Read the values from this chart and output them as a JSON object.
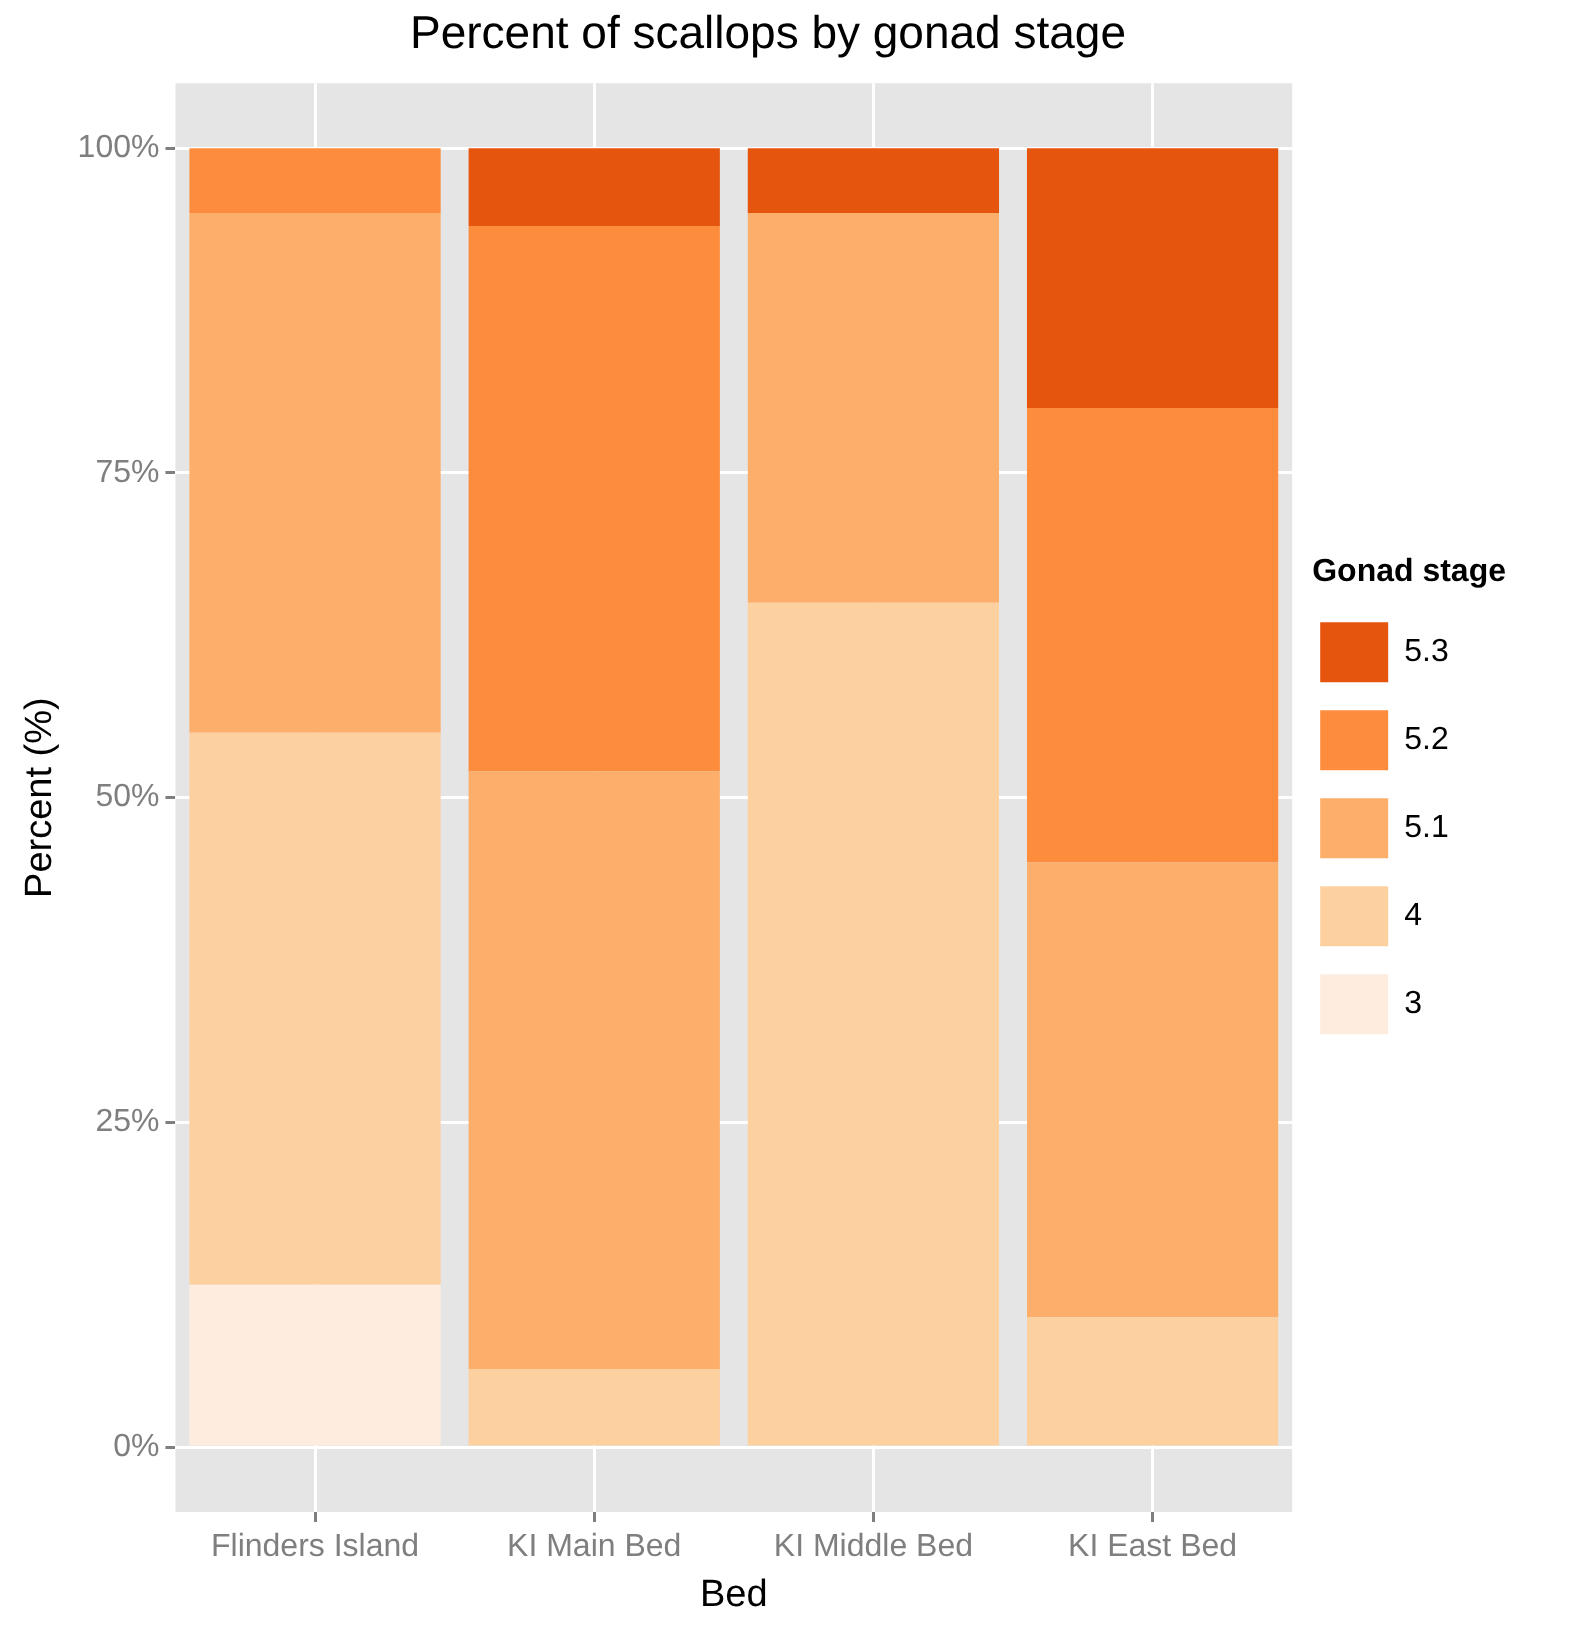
{
  "chart_data": {
    "type": "bar",
    "title": "Percent of scallops by gonad stage",
    "xlabel": "Bed",
    "ylabel": "Percent (%)",
    "legend_title": "Gonad stage",
    "categories": [
      "Flinders Island",
      "KI Main Bed",
      "KI Middle Bed",
      "KI East Bed"
    ],
    "series": [
      {
        "name": "3",
        "color": "#feeddf",
        "values": [
          12.5,
          0,
          0,
          0
        ]
      },
      {
        "name": "4",
        "color": "#fdd09f",
        "values": [
          42.5,
          6,
          65,
          10
        ]
      },
      {
        "name": "5.1",
        "color": "#fdae6b",
        "values": [
          40,
          46,
          30,
          35
        ]
      },
      {
        "name": "5.2",
        "color": "#fd8d3c",
        "values": [
          5,
          42,
          0,
          35
        ]
      },
      {
        "name": "5.3",
        "color": "#e6550d",
        "values": [
          0,
          6,
          5,
          20
        ]
      }
    ],
    "stacked": true,
    "ylim": [
      -5,
      105
    ],
    "yticks": [
      {
        "value": 0,
        "label": "0%"
      },
      {
        "value": 25,
        "label": "25%"
      },
      {
        "value": 50,
        "label": "50%"
      },
      {
        "value": 75,
        "label": "75%"
      },
      {
        "value": 100,
        "label": "100%"
      }
    ],
    "grid": true,
    "legend": "right"
  }
}
